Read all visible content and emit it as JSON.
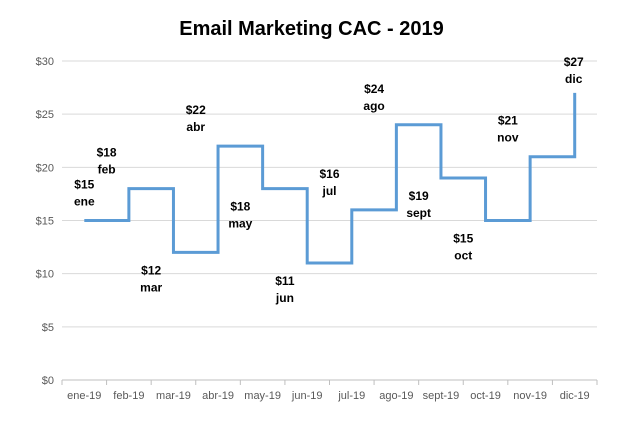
{
  "chart_data": {
    "type": "line",
    "step": true,
    "title": "Email Marketing CAC - 2019",
    "xlabel": "",
    "ylabel": "",
    "categories": [
      "ene-19",
      "feb-19",
      "mar-19",
      "abr-19",
      "may-19",
      "jun-19",
      "jul-19",
      "ago-19",
      "sept-19",
      "oct-19",
      "nov-19",
      "dic-19"
    ],
    "values": [
      15,
      18,
      12,
      22,
      18,
      11,
      16,
      24,
      19,
      15,
      21,
      27
    ],
    "value_labels": [
      "$15",
      "$18",
      "$12",
      "$22",
      "$18",
      "$11",
      "$16",
      "$24",
      "$19",
      "$15",
      "$21",
      "$27"
    ],
    "month_labels": [
      "ene",
      "feb",
      "mar",
      "abr",
      "may",
      "jun",
      "jul",
      "ago",
      "sept",
      "oct",
      "nov",
      "dic"
    ],
    "label_side": [
      "above",
      "above",
      "below",
      "above",
      "below",
      "below",
      "above",
      "above",
      "below",
      "below",
      "above",
      "above"
    ],
    "ylim": [
      0,
      30
    ],
    "yticks": [
      0,
      5,
      10,
      15,
      20,
      25,
      30
    ],
    "ytick_labels": [
      "$0",
      "$5",
      "$10",
      "$15",
      "$20",
      "$25",
      "$30"
    ],
    "grid": true,
    "legend": "none",
    "colors": {
      "line": "#5B9BD5",
      "grid": "#D9D9D9",
      "axis": "#BFBFBF",
      "tick_text": "#595959"
    }
  }
}
